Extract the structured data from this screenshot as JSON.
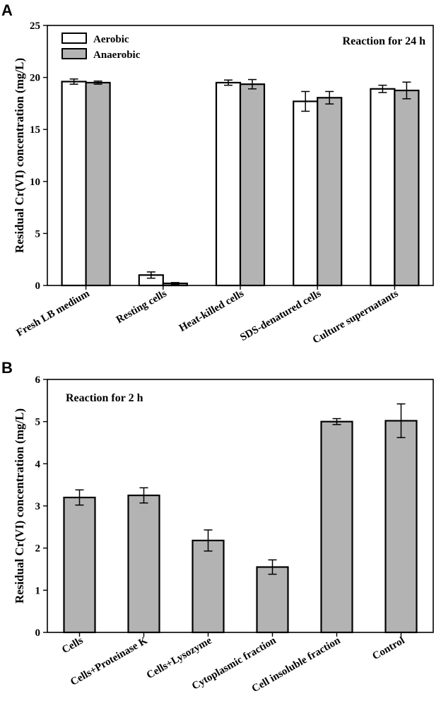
{
  "chart_data": [
    {
      "panel": "A",
      "type": "bar",
      "annotation": "Reaction for 24 h",
      "ylabel": "Residual Cr(VI) concentration (mg/L)",
      "xlabel": "",
      "ylim": [
        0,
        25
      ],
      "yticks": [
        "0",
        "5",
        "10",
        "15",
        "20",
        "25"
      ],
      "categories": [
        "Fresh LB medium",
        "Resting cells",
        "Heat-killed cells",
        "SDS-denatured cells",
        "Culture supernatants"
      ],
      "legend_position": "top-left",
      "series": [
        {
          "name": "Aerobic",
          "color": "#ffffff",
          "values": [
            19.6,
            1.0,
            19.5,
            17.7,
            18.9
          ],
          "errors": [
            0.25,
            0.3,
            0.25,
            0.95,
            0.35
          ]
        },
        {
          "name": "Anaerobic",
          "color": "#b3b3b3",
          "values": [
            19.5,
            0.2,
            19.35,
            18.05,
            18.75
          ],
          "errors": [
            0.15,
            0.08,
            0.45,
            0.6,
            0.8
          ]
        }
      ]
    },
    {
      "panel": "B",
      "type": "bar",
      "annotation": "Reaction for 2 h",
      "ylabel": "Residual Cr(VI) concentration (mg/L)",
      "xlabel": "",
      "ylim": [
        0,
        6
      ],
      "yticks": [
        "0",
        "1",
        "2",
        "3",
        "4",
        "5",
        "6"
      ],
      "categories": [
        "Cells",
        "Cells+Proteinase K",
        "Cells+Lysozyme",
        "Cytoplasmic fraction",
        "Cell insoluble fraction",
        "Control"
      ],
      "series": [
        {
          "name": "Residual Cr(VI)",
          "color": "#b3b3b3",
          "values": [
            3.2,
            3.25,
            2.18,
            1.55,
            5.0,
            5.02
          ],
          "errors": [
            0.18,
            0.18,
            0.25,
            0.17,
            0.07,
            0.4
          ]
        }
      ]
    }
  ]
}
